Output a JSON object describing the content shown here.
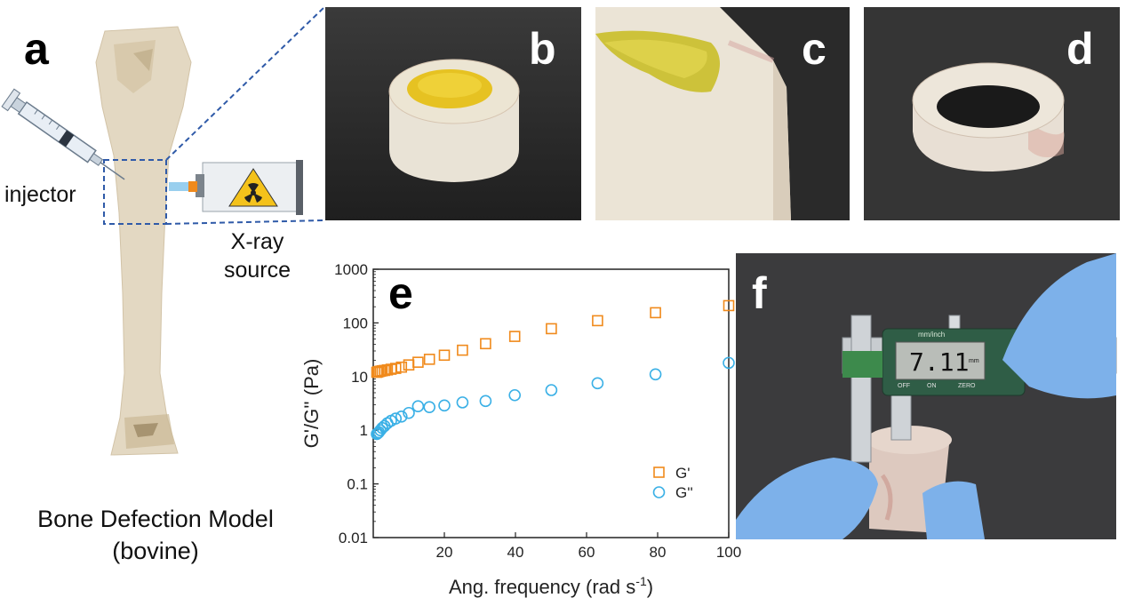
{
  "panels": {
    "a": "a",
    "b": "b",
    "c": "c",
    "d": "d",
    "e": "e",
    "f": "f"
  },
  "panel_a": {
    "injector_label": "injector",
    "xray_label_line1": "X-ray",
    "xray_label_line2": "source",
    "caption_line1": "Bone Defection Model",
    "caption_line2": "(bovine)"
  },
  "panel_f": {
    "caliper_display": "7.11",
    "caliper_unit": "mm",
    "caliper_mode": "mm/inch",
    "btn_off": "OFF",
    "btn_on": "ON",
    "btn_zero": "ZERO"
  },
  "colors": {
    "g_prime": "#f08a1c",
    "g_double_prime": "#3ab0e6",
    "dashed_box": "#2f5aa8"
  },
  "chart_data": {
    "type": "scatter",
    "xlabel": "Ang. frequency (rad s",
    "xlabel_sup": "-1",
    "xlabel_close": ")",
    "ylabel": "G'/G'' (Pa)",
    "ylog": true,
    "xlim": [
      0,
      100
    ],
    "ylim": [
      0.01,
      1000
    ],
    "xticks": [
      "20",
      "40",
      "60",
      "80",
      "100"
    ],
    "yticks": [
      "0.01",
      "0.1",
      "1",
      "10",
      "100",
      "1000"
    ],
    "legend_position": "bottom-right",
    "series": [
      {
        "name": "G'",
        "marker": "square",
        "x": [
          1.0,
          1.26,
          1.58,
          2.0,
          2.51,
          3.16,
          3.98,
          5.01,
          6.31,
          7.94,
          10.0,
          12.6,
          15.8,
          20.0,
          25.1,
          31.6,
          39.8,
          50.1,
          63.1,
          79.4,
          100
        ],
        "y": [
          12.0,
          12.2,
          12.4,
          12.6,
          12.8,
          13.0,
          13.3,
          13.7,
          14.2,
          15.0,
          16.5,
          18.5,
          21.0,
          25.0,
          31.0,
          41.0,
          56.0,
          78.0,
          110.0,
          155.0,
          210.0
        ]
      },
      {
        "name": "G''",
        "marker": "circle",
        "x": [
          1.0,
          1.26,
          1.58,
          2.0,
          2.51,
          3.16,
          3.98,
          5.01,
          6.31,
          7.94,
          10.0,
          12.6,
          15.8,
          20.0,
          25.1,
          31.6,
          39.8,
          50.1,
          63.1,
          79.4,
          100
        ],
        "y": [
          0.85,
          0.88,
          0.92,
          1.0,
          1.1,
          1.2,
          1.35,
          1.5,
          1.65,
          1.8,
          2.1,
          2.8,
          2.7,
          2.9,
          3.3,
          3.5,
          4.5,
          5.6,
          7.5,
          11.0,
          18.0
        ]
      }
    ]
  }
}
